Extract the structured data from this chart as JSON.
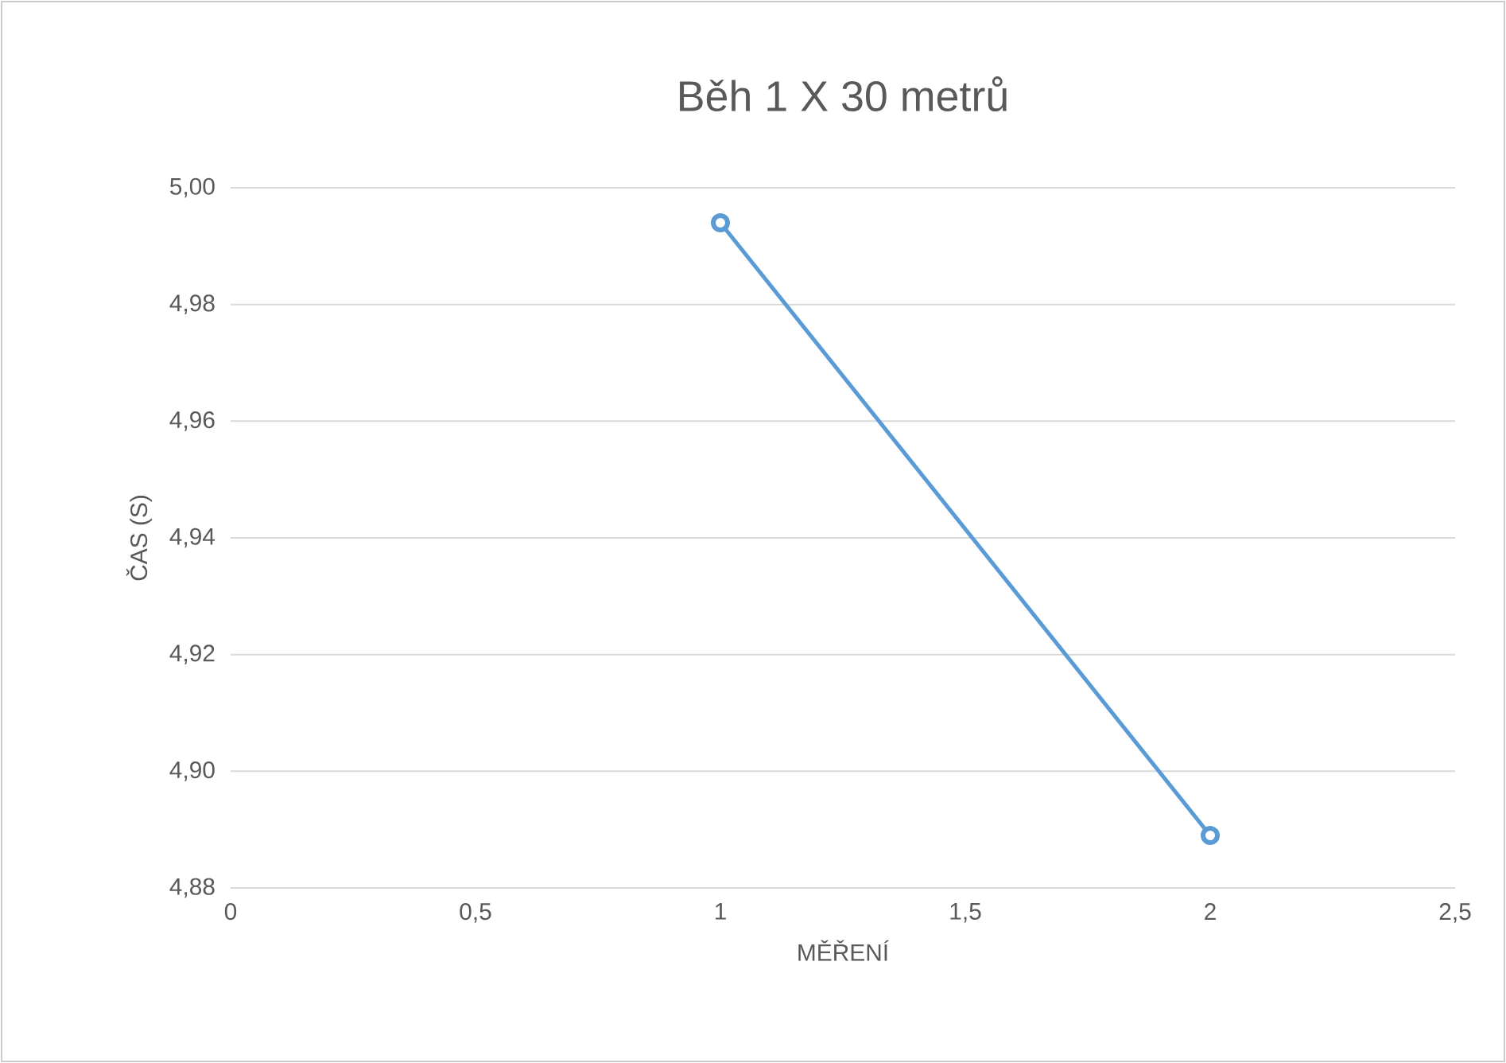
{
  "chart_data": {
    "type": "line",
    "title": "Běh 1 X 30 metrů",
    "xlabel": "MĚŘENÍ",
    "ylabel": "ČAS (S)",
    "x": [
      1,
      2
    ],
    "series": [
      {
        "color": "#5b9bd5",
        "values": [
          4.994,
          4.889
        ]
      }
    ],
    "xlim": [
      0,
      2.5
    ],
    "xticks": [
      0,
      {
        "value": 0.5,
        "label": "0,5"
      },
      1,
      {
        "value": 1.5,
        "label": "1,5"
      },
      2,
      {
        "value": 2.5,
        "label": "2,5"
      }
    ],
    "ylim": [
      4.88,
      5.0
    ],
    "yticks": [
      {
        "value": 4.88,
        "label": "4,88"
      },
      {
        "value": 4.9,
        "label": "4,90"
      },
      {
        "value": 4.92,
        "label": "4,92"
      },
      {
        "value": 4.94,
        "label": "4,94"
      },
      {
        "value": 4.96,
        "label": "4,96"
      },
      {
        "value": 4.98,
        "label": "4,98"
      },
      {
        "value": 5.0,
        "label": "5,00"
      }
    ],
    "grid": "y",
    "marker": "circle",
    "line_style": "solid"
  }
}
